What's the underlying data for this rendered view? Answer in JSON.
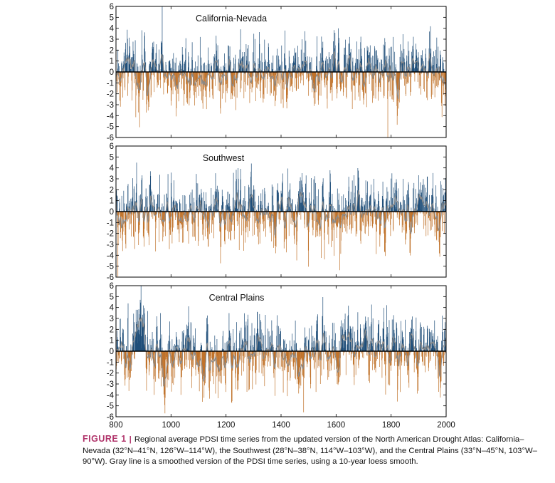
{
  "colors": {
    "positive": "#1f4e79",
    "negative": "#c0722a",
    "smooth": "#8a8a8a",
    "caption_accent": "#b0336a"
  },
  "chart_data": [
    {
      "type": "bar",
      "title": "California-Nevada",
      "xlim": [
        800,
        2000
      ],
      "ylim": [
        -6,
        6
      ],
      "yticks": [
        6,
        5,
        4,
        3,
        2,
        1,
        0,
        -1,
        -2,
        -3,
        -4,
        -5,
        -6
      ],
      "xticks": [],
      "series": [
        {
          "kind": "annual",
          "mean": 0.0,
          "amplitude": 6.0
        },
        {
          "kind": "smooth",
          "smoothing": "10-year loess"
        }
      ]
    },
    {
      "type": "bar",
      "title": "Southwest",
      "xlim": [
        800,
        2000
      ],
      "ylim": [
        -6,
        6
      ],
      "yticks": [
        6,
        5,
        4,
        3,
        2,
        1,
        0,
        -1,
        -2,
        -3,
        -4,
        -5,
        -6
      ],
      "xticks": [],
      "series": [
        {
          "kind": "annual",
          "mean": 0.0,
          "amplitude": 6.0
        },
        {
          "kind": "smooth",
          "smoothing": "10-year loess"
        }
      ]
    },
    {
      "type": "bar",
      "title": "Central Plains",
      "xlim": [
        800,
        2000
      ],
      "ylim": [
        -6,
        6
      ],
      "yticks": [
        6,
        5,
        4,
        3,
        2,
        1,
        0,
        -1,
        -2,
        -3,
        -4,
        -5,
        -6
      ],
      "xticks": [
        800,
        1000,
        1200,
        1400,
        1600,
        1800,
        2000
      ],
      "series": [
        {
          "kind": "annual",
          "mean": 0.0,
          "amplitude": 6.0
        },
        {
          "kind": "smooth",
          "smoothing": "10-year loess"
        }
      ]
    }
  ],
  "caption": {
    "label": "FIGURE 1",
    "separator": "|",
    "text": "Regional average PDSI time series from the updated version of the North American Drought Atlas: California–Nevada (32°N–41°N, 126°W–114°W), the Southwest (28°N–38°N, 114°W–103°W), and the Central Plains (33°N–45°N, 103°W–90°W). Gray line is a smoothed version of the PDSI time series, using a 10-year loess smooth."
  }
}
